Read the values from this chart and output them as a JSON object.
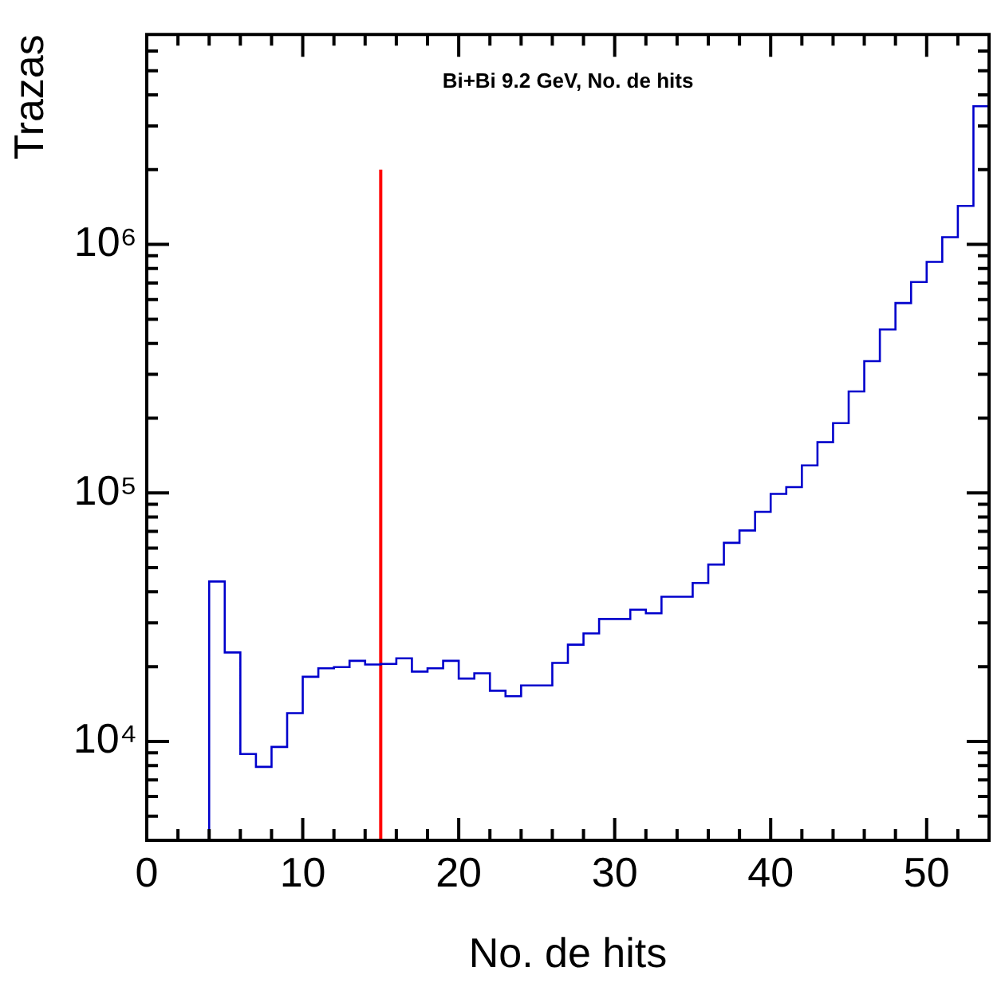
{
  "chart_data": {
    "type": "histogram",
    "title": "Bi+Bi 9.2 GeV, No. de hits",
    "xlabel": "No. de hits",
    "ylabel": "Trazas",
    "bins": [
      4,
      5,
      6,
      7,
      8,
      9,
      10,
      11,
      12,
      13,
      14,
      15,
      16,
      17,
      18,
      19,
      20,
      21,
      22,
      23,
      24,
      25,
      26,
      27,
      28,
      29,
      30,
      31,
      32,
      33,
      34,
      35,
      36,
      37,
      38,
      39,
      40,
      41,
      42,
      43,
      44,
      45,
      46,
      47,
      48,
      49,
      50,
      51,
      52,
      53,
      54
    ],
    "values": [
      44000,
      22800,
      8900,
      7900,
      9500,
      13000,
      18200,
      19700,
      19900,
      21100,
      20400,
      20500,
      21600,
      19100,
      19700,
      21100,
      17900,
      18800,
      16000,
      15200,
      16800,
      16800,
      20700,
      24500,
      27200,
      31100,
      31100,
      33900,
      32800,
      38200,
      38200,
      43400,
      51500,
      63000,
      70600,
      83900,
      99100,
      105500,
      129000,
      160000,
      191000,
      256000,
      339000,
      455000,
      581000,
      706000,
      851000,
      1070000,
      1430000,
      3600000
    ],
    "color": "#0000cc",
    "series": [
      {
        "type": "line",
        "x": [
          15,
          15
        ],
        "values": [
          4000,
          2000000
        ],
        "color": "#ff0000"
      }
    ],
    "xlim": [
      0,
      54
    ],
    "xticks": [
      0,
      {
        "value": 2,
        "label": null
      },
      {
        "value": 4,
        "label": null
      },
      {
        "value": 6,
        "label": null
      },
      {
        "value": 8,
        "label": null
      },
      10,
      {
        "value": 12,
        "label": null
      },
      {
        "value": 14,
        "label": null
      },
      {
        "value": 16,
        "label": null
      },
      {
        "value": 18,
        "label": null
      },
      20,
      {
        "value": 22,
        "label": null
      },
      {
        "value": 24,
        "label": null
      },
      {
        "value": 26,
        "label": null
      },
      {
        "value": 28,
        "label": null
      },
      30,
      {
        "value": 32,
        "label": null
      },
      {
        "value": 34,
        "label": null
      },
      {
        "value": 36,
        "label": null
      },
      {
        "value": 38,
        "label": null
      },
      40,
      {
        "value": 42,
        "label": null
      },
      {
        "value": 44,
        "label": null
      },
      {
        "value": 46,
        "label": null
      },
      {
        "value": 48,
        "label": null
      },
      50,
      {
        "value": 52,
        "label": null
      }
    ],
    "ylim": [
      4000,
      7000000
    ],
    "yticks": [
      {
        "value": 5000,
        "label": null
      },
      {
        "value": 6000,
        "label": null
      },
      {
        "value": 7000,
        "label": null
      },
      {
        "value": 8000,
        "label": null
      },
      {
        "value": 9000,
        "label": null
      },
      {
        "value": 10000,
        "label": "10⁴"
      },
      {
        "value": 20000,
        "label": null
      },
      {
        "value": 30000,
        "label": null
      },
      {
        "value": 40000,
        "label": null
      },
      {
        "value": 50000,
        "label": null
      },
      {
        "value": 60000,
        "label": null
      },
      {
        "value": 70000,
        "label": null
      },
      {
        "value": 80000,
        "label": null
      },
      {
        "value": 90000,
        "label": null
      },
      {
        "value": 100000,
        "label": "10⁵"
      },
      {
        "value": 200000,
        "label": null
      },
      {
        "value": 300000,
        "label": null
      },
      {
        "value": 400000,
        "label": null
      },
      {
        "value": 500000,
        "label": null
      },
      {
        "value": 600000,
        "label": null
      },
      {
        "value": 700000,
        "label": null
      },
      {
        "value": 800000,
        "label": null
      },
      {
        "value": 900000,
        "label": null
      },
      {
        "value": 1000000,
        "label": "10⁶"
      },
      {
        "value": 2000000,
        "label": null
      },
      {
        "value": 3000000,
        "label": null
      },
      {
        "value": 4000000,
        "label": null
      },
      {
        "value": 5000000,
        "label": null
      },
      {
        "value": 6000000,
        "label": null
      }
    ],
    "log": true,
    "grid": false,
    "legend": false
  }
}
